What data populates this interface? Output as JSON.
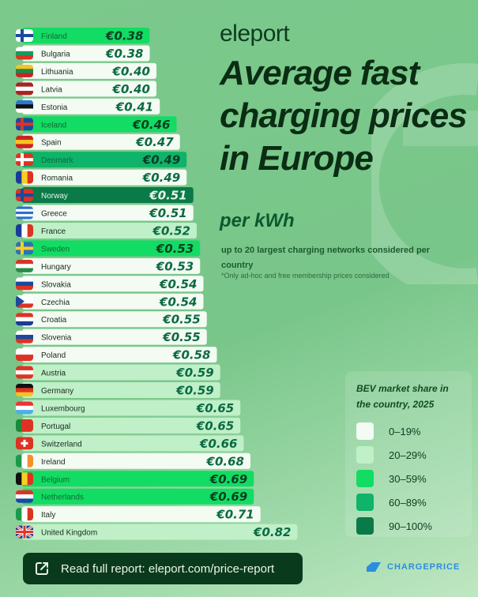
{
  "header": {
    "logo": "eleport",
    "title": "Average fast charging prices in Europe",
    "unit": "per kWh",
    "subtitle": "up to 20 largest charging networks considered per country",
    "note": "*Only ad-hoc and free membership prices considered"
  },
  "legend": {
    "title": "BEV market share in the country, 2025",
    "items": [
      {
        "label": "0–19%",
        "color": "#f3fbf3"
      },
      {
        "label": "20–29%",
        "color": "#bff0c8"
      },
      {
        "label": "30–59%",
        "color": "#12dc63"
      },
      {
        "label": "60–89%",
        "color": "#0fb36a"
      },
      {
        "label": "90–100%",
        "color": "#0a7a48"
      }
    ]
  },
  "chart_data": {
    "type": "bar",
    "orientation": "horizontal",
    "title": "Average fast charging prices in Europe",
    "unit": "€ per kWh",
    "categories": [
      "Finland",
      "Bulgaria",
      "Lithuania",
      "Latvia",
      "Estonia",
      "Iceland",
      "Spain",
      "Denmark",
      "Romania",
      "Norway",
      "Greece",
      "France",
      "Sweden",
      "Hungary",
      "Slovakia",
      "Czechia",
      "Croatia",
      "Slovenia",
      "Poland",
      "Austria",
      "Germany",
      "Luxembourg",
      "Portugal",
      "Switzerland",
      "Ireland",
      "Belgium",
      "Netherlands",
      "Italy",
      "United Kingdom"
    ],
    "values": [
      0.38,
      0.38,
      0.4,
      0.4,
      0.41,
      0.46,
      0.47,
      0.49,
      0.49,
      0.51,
      0.51,
      0.52,
      0.53,
      0.53,
      0.54,
      0.54,
      0.55,
      0.55,
      0.58,
      0.59,
      0.59,
      0.65,
      0.65,
      0.66,
      0.68,
      0.69,
      0.69,
      0.71,
      0.82
    ],
    "labels": [
      "€0.38",
      "€0.38",
      "€0.40",
      "€0.40",
      "€0.41",
      "€0.46",
      "€0.47",
      "€0.49",
      "€0.49",
      "€0.51",
      "€0.51",
      "€0.52",
      "€0.53",
      "€0.53",
      "€0.54",
      "€0.54",
      "€0.55",
      "€0.55",
      "€0.58",
      "€0.59",
      "€0.59",
      "€0.65",
      "€0.65",
      "€0.66",
      "€0.68",
      "€0.69",
      "€0.69",
      "€0.71",
      "€0.82"
    ],
    "bev_share_band": [
      "30–59%",
      "0–19%",
      "0–19%",
      "0–19%",
      "0–19%",
      "30–59%",
      "0–19%",
      "60–89%",
      "0–19%",
      "90–100%",
      "0–19%",
      "20–29%",
      "30–59%",
      "0–19%",
      "0–19%",
      "0–19%",
      "0–19%",
      "0–19%",
      "0–19%",
      "20–29%",
      "20–29%",
      "20–29%",
      "20–29%",
      "20–29%",
      "0–19%",
      "30–59%",
      "30–59%",
      "0–19%",
      "20–29%"
    ],
    "icons": "country-flags",
    "sorted": "ascending"
  },
  "footer": {
    "cta_label": "Read full report: eleport.com/price-report",
    "cta_icon": "external-link-icon",
    "partner_logo": "CHARGEPRICE",
    "partner_color": "#2a8de0"
  }
}
